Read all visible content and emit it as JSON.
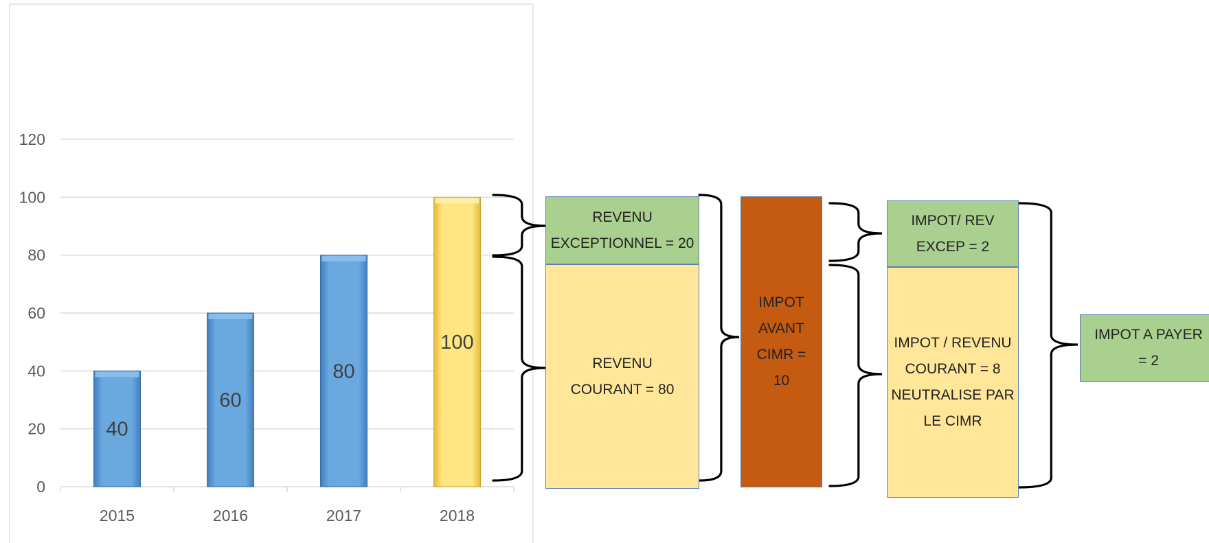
{
  "colors": {
    "bar_blue": "#5b9bd5",
    "bar_yellow": "#ffd966",
    "box_green": "#a9d08e",
    "box_light_yellow": "#ffe699",
    "box_orange": "#c55a11",
    "grid": "#d9d9d9",
    "axis_text": "#595959"
  },
  "chart_data": {
    "type": "bar",
    "categories": [
      "2015",
      "2016",
      "2017",
      "2018"
    ],
    "values": [
      40,
      60,
      80,
      100
    ],
    "data_labels": [
      "40",
      "60",
      "80",
      "100"
    ],
    "ylim": [
      0,
      120
    ],
    "yticks": [
      "0",
      "20",
      "40",
      "60",
      "80",
      "100",
      "120"
    ],
    "grid": true,
    "bar_colors": [
      "bar_blue",
      "bar_blue",
      "bar_blue",
      "bar_yellow"
    ]
  },
  "boxes": {
    "revenu_exceptionnel": "REVENU\nEXCEPTIONNEL = 20",
    "revenu_courant": "REVENU\nCOURANT = 80",
    "impot_avant_cimr": "IMPOT\nAVANT\nCIMR =\n10",
    "impot_rev_excep": "IMPOT/ REV\nEXCEP = 2",
    "impot_revenu_courant": "IMPOT / REVENU\nCOURANT = 8\nNEUTRALISE PAR\nLE CIMR",
    "impot_a_payer": "IMPOT A PAYER\n= 2"
  }
}
